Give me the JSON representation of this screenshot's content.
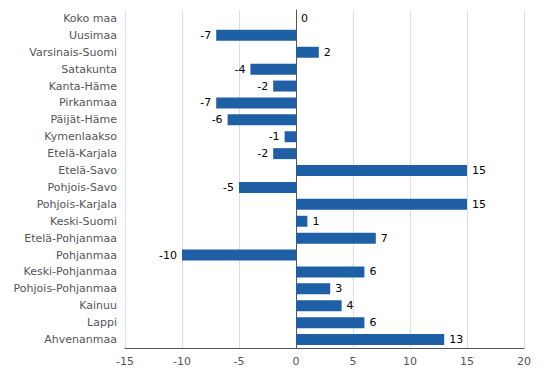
{
  "chart_data": {
    "type": "bar",
    "orientation": "horizontal",
    "categories": [
      "Koko maa",
      "Uusimaa",
      "Varsinais-Suomi",
      "Satakunta",
      "Kanta-Häme",
      "Pirkanmaa",
      "Päijät-Häme",
      "Kymenlaakso",
      "Etelä-Karjala",
      "Etelä-Savo",
      "Pohjois-Savo",
      "Pohjois-Karjala",
      "Keski-Suomi",
      "Etelä-Pohjanmaa",
      "Pohjanmaa",
      "Keski-Pohjanmaa",
      "Pohjois-Pohjanmaa",
      "Kainuu",
      "Lappi",
      "Ahvenanmaa"
    ],
    "values": [
      0,
      -7,
      2,
      -4,
      -2,
      -7,
      -6,
      -1,
      -2,
      15,
      -5,
      15,
      1,
      7,
      -10,
      6,
      3,
      4,
      6,
      13
    ],
    "color": "#1F5FA6",
    "xlim": [
      -15,
      20
    ],
    "xticks": [
      -15,
      -10,
      -5,
      0,
      5,
      10,
      15,
      20
    ],
    "grid": true,
    "data_labels": true
  }
}
